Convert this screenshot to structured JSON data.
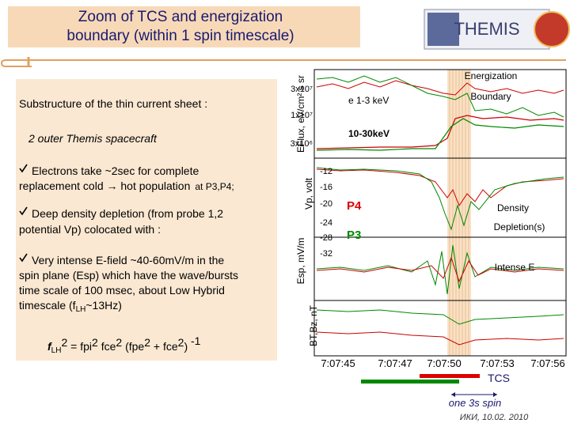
{
  "header": {
    "title_lines": [
      "Zoom of TCS and energization",
      "boundary (within 1 spin timescale)"
    ],
    "logo": "THEMIS"
  },
  "text_box": {
    "heading": "Substructure of the thin current sheet :",
    "subheading": "2 outer Themis spacecraft",
    "bullets": [
      {
        "lines": [
          "Electrons take ~2sec for complete",
          "replacement cold → hot population"
        ],
        "note": "at P3,P4;"
      },
      {
        "lines": [
          "Deep density depletion (from probe 1,2",
          "potential Vp) colocated with :"
        ]
      },
      {
        "lines": [
          "Very intense E-field ~40-60mV/m in the",
          "spin plane (Esp) which have the wave/bursts",
          "time scale of 100 msec, about Low Hybrid"
        ],
        "last_line": [
          "timescale (f",
          "LH",
          "~13Hz)"
        ]
      }
    ],
    "formula": [
      "f",
      "LH",
      "2",
      " =  fpi",
      "2",
      " fce",
      "2",
      "  (fpe",
      "2",
      " + fce",
      "2",
      ")",
      " -1"
    ]
  },
  "figure": {
    "axis_labels": [
      "EFlux, eV/cm² s sr",
      "Vp, volt",
      "Esp, mV/m",
      "BT,Bz, nT"
    ],
    "eflux_ticks": [
      "3x10⁷",
      "1x10⁷",
      "3x10⁶"
    ],
    "vp_ticks": [
      "-12",
      "-16",
      "-20",
      "-24",
      "-28",
      "-32"
    ],
    "x_ticks": [
      "7:07:45",
      "7:07:47",
      "7:07:50",
      "7:07:53",
      "7:07:56"
    ],
    "trace_labels": [
      "e 1-3 keV",
      "10-30keV",
      "P4",
      "P3"
    ],
    "annotations": [
      "Energization",
      "Boundary",
      "Density",
      "Depletion(s)",
      "Intense E"
    ],
    "tcs": "TCS",
    "spin": "one 3s spin",
    "footer": "ИКИ, 10.02. 2010"
  }
}
